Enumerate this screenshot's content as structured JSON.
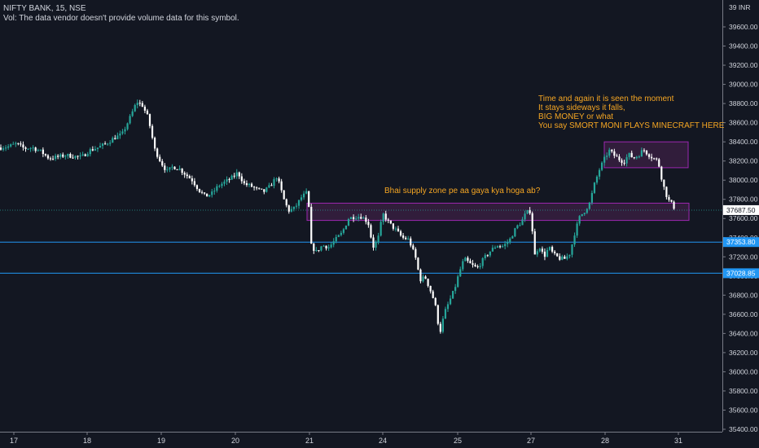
{
  "header": {
    "symbol_line": "NIFTY BANK, 15, NSE",
    "volume_line": "Vol: The data vendor doesn't provide volume data for this symbol."
  },
  "price_axis": {
    "currency_label": "39 INR",
    "ticks": [
      "39600.00",
      "39400.00",
      "39200.00",
      "39000.00",
      "38800.00",
      "38600.00",
      "38400.00",
      "38200.00",
      "38000.00",
      "37800.00",
      "37600.00",
      "37400.00",
      "37200.00",
      "37000.00",
      "36800.00",
      "36600.00",
      "36400.00",
      "36200.00",
      "36000.00",
      "35800.00",
      "35600.00",
      "35400.00"
    ]
  },
  "time_axis": {
    "ticks": [
      "17",
      "18",
      "19",
      "20",
      "21",
      "24",
      "25",
      "27",
      "28",
      "31"
    ]
  },
  "annotations": {
    "supply_zone_note": "Bhai supply zone pe aa gaya kya hoga ab?",
    "sideways_note": [
      "Time and again it is seen the moment",
      "It stays sideways it falls,",
      "BIG MONEY or what",
      "You say SMORT MONI PLAYS MINECRAFT HERE"
    ]
  },
  "colors": {
    "background": "#131722",
    "up": "#26a69a",
    "down": "#ffffff",
    "level_line": "#2196f3",
    "zone_fill": "#4a2250",
    "zone_border": "#9c27b0",
    "note_text": "#f5a623"
  },
  "chart_data": {
    "type": "candlestick",
    "title": "NIFTY BANK, 15, NSE",
    "ylim": [
      35400,
      39650
    ],
    "y_ticks": [
      35400,
      35600,
      35800,
      36000,
      36200,
      36400,
      36600,
      36800,
      37000,
      37200,
      37400,
      37600,
      37800,
      38000,
      38200,
      38400,
      38600,
      38800,
      39000,
      39200,
      39400,
      39600
    ],
    "horizontal_levels": [
      {
        "price": 37353.8,
        "label": "37353.80"
      },
      {
        "price": 37028.85,
        "label": "37028.85"
      }
    ],
    "last_price": {
      "price": 37687.5,
      "label": "37687.50"
    },
    "zones": [
      {
        "from_day": "21",
        "to_day": "31",
        "price_low": 37580,
        "price_high": 37760
      },
      {
        "from_day": "28",
        "to_day": "28",
        "price_low": 38130,
        "price_high": 38400
      }
    ],
    "price_path": [
      [
        0,
        38340
      ],
      [
        10,
        38350
      ],
      [
        20,
        38380
      ],
      [
        30,
        38330
      ],
      [
        40,
        38340
      ],
      [
        50,
        38300
      ],
      [
        60,
        38230
      ],
      [
        70,
        38240
      ],
      [
        80,
        38260
      ],
      [
        90,
        38250
      ],
      [
        100,
        38240
      ],
      [
        110,
        38310
      ],
      [
        120,
        38340
      ],
      [
        130,
        38380
      ],
      [
        140,
        38440
      ],
      [
        150,
        38480
      ],
      [
        160,
        38660
      ],
      [
        168,
        38820
      ],
      [
        175,
        38780
      ],
      [
        182,
        38650
      ],
      [
        190,
        38320
      ],
      [
        198,
        38180
      ],
      [
        205,
        38090
      ],
      [
        212,
        38140
      ],
      [
        220,
        38120
      ],
      [
        228,
        38060
      ],
      [
        236,
        38000
      ],
      [
        244,
        37900
      ],
      [
        252,
        37830
      ],
      [
        260,
        37860
      ],
      [
        268,
        37940
      ],
      [
        276,
        37980
      ],
      [
        284,
        38020
      ],
      [
        292,
        38080
      ],
      [
        300,
        37960
      ],
      [
        308,
        37940
      ],
      [
        316,
        37900
      ],
      [
        324,
        37880
      ],
      [
        332,
        37940
      ],
      [
        340,
        38040
      ],
      [
        345,
        37900
      ],
      [
        350,
        37760
      ],
      [
        355,
        37680
      ],
      [
        362,
        37710
      ],
      [
        370,
        37820
      ],
      [
        378,
        37880
      ],
      [
        382,
        37320
      ],
      [
        388,
        37250
      ],
      [
        396,
        37320
      ],
      [
        404,
        37300
      ],
      [
        412,
        37380
      ],
      [
        420,
        37450
      ],
      [
        428,
        37600
      ],
      [
        436,
        37620
      ],
      [
        444,
        37620
      ],
      [
        452,
        37560
      ],
      [
        458,
        37300
      ],
      [
        464,
        37380
      ],
      [
        470,
        37650
      ],
      [
        478,
        37550
      ],
      [
        486,
        37480
      ],
      [
        494,
        37400
      ],
      [
        502,
        37380
      ],
      [
        510,
        37200
      ],
      [
        516,
        36960
      ],
      [
        522,
        36990
      ],
      [
        528,
        36860
      ],
      [
        534,
        36720
      ],
      [
        540,
        36400
      ],
      [
        546,
        36620
      ],
      [
        552,
        36740
      ],
      [
        558,
        36860
      ],
      [
        564,
        37040
      ],
      [
        570,
        37180
      ],
      [
        578,
        37120
      ],
      [
        586,
        37080
      ],
      [
        594,
        37180
      ],
      [
        602,
        37260
      ],
      [
        610,
        37320
      ],
      [
        618,
        37310
      ],
      [
        626,
        37380
      ],
      [
        634,
        37510
      ],
      [
        640,
        37560
      ],
      [
        646,
        37660
      ],
      [
        652,
        37680
      ],
      [
        656,
        37200
      ],
      [
        662,
        37320
      ],
      [
        668,
        37200
      ],
      [
        674,
        37300
      ],
      [
        680,
        37220
      ],
      [
        688,
        37180
      ],
      [
        694,
        37180
      ],
      [
        700,
        37240
      ],
      [
        706,
        37460
      ],
      [
        712,
        37620
      ],
      [
        718,
        37680
      ],
      [
        724,
        37760
      ],
      [
        730,
        37960
      ],
      [
        736,
        38110
      ],
      [
        742,
        38220
      ],
      [
        748,
        38310
      ],
      [
        754,
        38260
      ],
      [
        760,
        38220
      ],
      [
        766,
        38190
      ],
      [
        772,
        38270
      ],
      [
        778,
        38230
      ],
      [
        784,
        38260
      ],
      [
        790,
        38320
      ],
      [
        796,
        38270
      ],
      [
        802,
        38230
      ],
      [
        808,
        38200
      ],
      [
        814,
        37960
      ],
      [
        820,
        37800
      ],
      [
        826,
        37740
      ],
      [
        830,
        37680
      ]
    ],
    "chart_type": "candlestick",
    "grid": false
  }
}
